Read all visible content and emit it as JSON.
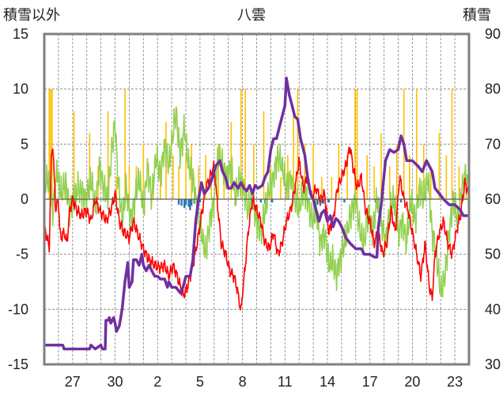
{
  "chart_data": {
    "type": "line",
    "title": "八雲",
    "left_axis_label": "積雪以外",
    "right_axis_label": "積雪",
    "y_left": {
      "min": -15,
      "max": 15,
      "ticks": [
        15,
        10,
        5,
        0,
        -5,
        -10,
        -15
      ]
    },
    "y_right": {
      "min": 30,
      "max": 90,
      "ticks": [
        90,
        80,
        70,
        60,
        50,
        40,
        30
      ]
    },
    "x_day_range": [
      0,
      30
    ],
    "x_tick_labels": [
      {
        "day": 2,
        "label": "27"
      },
      {
        "day": 5,
        "label": "30"
      },
      {
        "day": 8,
        "label": "2"
      },
      {
        "day": 11,
        "label": "5"
      },
      {
        "day": 14,
        "label": "8"
      },
      {
        "day": 17,
        "label": "11"
      },
      {
        "day": 20,
        "label": "14"
      },
      {
        "day": 23,
        "label": "17"
      },
      {
        "day": 26,
        "label": "20"
      },
      {
        "day": 29,
        "label": "23"
      }
    ],
    "grid": true,
    "colors": {
      "precip_bars": "#ffc000",
      "negative_bars": "#2e75b6",
      "temperature": "#ff0000",
      "green_series": "#92d050",
      "snow_depth": "#7030a0",
      "frame": "#808080",
      "grid": "#7f7f7f"
    },
    "snow_depth": [
      [
        0,
        33.5
      ],
      [
        1.3,
        33.5
      ],
      [
        1.4,
        32.8
      ],
      [
        3.2,
        32.8
      ],
      [
        3.3,
        33.5
      ],
      [
        3.6,
        32.8
      ],
      [
        4.0,
        33.5
      ],
      [
        4.1,
        32.8
      ],
      [
        4.3,
        32.8
      ],
      [
        4.35,
        38
      ],
      [
        4.5,
        38
      ],
      [
        4.6,
        38.5
      ],
      [
        4.7,
        37.5
      ],
      [
        4.8,
        38
      ],
      [
        4.9,
        38.5
      ],
      [
        5.0,
        37.5
      ],
      [
        5.1,
        36
      ],
      [
        5.3,
        37
      ],
      [
        5.5,
        40
      ],
      [
        5.7,
        45
      ],
      [
        5.9,
        48.5
      ],
      [
        6.0,
        44
      ],
      [
        6.2,
        45
      ],
      [
        6.3,
        49
      ],
      [
        6.5,
        49
      ],
      [
        6.7,
        48
      ],
      [
        6.9,
        50
      ],
      [
        7.0,
        48
      ],
      [
        7.2,
        47
      ],
      [
        7.4,
        48
      ],
      [
        7.6,
        47
      ],
      [
        7.8,
        46
      ],
      [
        8.0,
        46
      ],
      [
        8.2,
        45.5
      ],
      [
        8.5,
        45.5
      ],
      [
        8.7,
        44
      ],
      [
        8.8,
        45
      ],
      [
        9.0,
        44
      ],
      [
        9.3,
        44
      ],
      [
        9.6,
        43
      ],
      [
        9.8,
        44
      ],
      [
        10.0,
        46
      ],
      [
        10.3,
        46
      ],
      [
        10.5,
        49
      ],
      [
        10.7,
        56
      ],
      [
        10.9,
        60
      ],
      [
        11.1,
        63
      ],
      [
        11.3,
        61
      ],
      [
        11.6,
        62
      ],
      [
        11.9,
        64
      ],
      [
        12.1,
        66
      ],
      [
        12.4,
        67
      ],
      [
        12.6,
        65
      ],
      [
        12.8,
        64
      ],
      [
        13.0,
        62
      ],
      [
        13.2,
        62
      ],
      [
        13.4,
        63
      ],
      [
        13.7,
        62
      ],
      [
        13.9,
        63
      ],
      [
        14.1,
        62
      ],
      [
        14.3,
        61.5
      ],
      [
        14.5,
        62.5
      ],
      [
        14.7,
        61
      ],
      [
        14.9,
        62.5
      ],
      [
        15.1,
        62
      ],
      [
        15.4,
        62.5
      ],
      [
        15.6,
        64
      ],
      [
        15.8,
        65
      ],
      [
        16.0,
        69
      ],
      [
        16.2,
        71
      ],
      [
        16.4,
        71
      ],
      [
        16.6,
        73
      ],
      [
        16.8,
        75
      ],
      [
        17.0,
        77
      ],
      [
        17.1,
        82
      ],
      [
        17.3,
        79
      ],
      [
        17.5,
        77
      ],
      [
        17.7,
        75
      ],
      [
        17.9,
        74.5
      ],
      [
        18.1,
        71
      ],
      [
        18.4,
        68
      ],
      [
        18.6,
        64
      ],
      [
        18.8,
        61
      ],
      [
        19.0,
        60
      ],
      [
        19.2,
        58
      ],
      [
        19.4,
        56
      ],
      [
        19.6,
        57.5
      ],
      [
        19.8,
        58
      ],
      [
        20.0,
        56
      ],
      [
        20.2,
        57
      ],
      [
        20.4,
        55
      ],
      [
        20.6,
        56.5
      ],
      [
        20.8,
        56
      ],
      [
        21.0,
        55
      ],
      [
        21.3,
        53
      ],
      [
        21.6,
        52
      ],
      [
        22.0,
        51
      ],
      [
        22.4,
        51
      ],
      [
        22.6,
        50
      ],
      [
        23.0,
        50
      ],
      [
        23.3,
        49.5
      ],
      [
        23.5,
        49.5
      ],
      [
        23.6,
        55
      ],
      [
        23.8,
        59
      ],
      [
        24.1,
        67
      ],
      [
        24.4,
        69
      ],
      [
        24.7,
        68.5
      ],
      [
        25.0,
        69
      ],
      [
        25.2,
        71.5
      ],
      [
        25.4,
        70
      ],
      [
        25.6,
        67
      ],
      [
        26.0,
        67
      ],
      [
        26.4,
        66
      ],
      [
        26.7,
        65
      ],
      [
        27.0,
        67
      ],
      [
        27.4,
        65
      ],
      [
        27.6,
        62
      ],
      [
        27.9,
        61
      ],
      [
        28.2,
        60
      ],
      [
        28.6,
        59
      ],
      [
        29.0,
        59
      ],
      [
        29.4,
        58
      ],
      [
        29.6,
        57
      ],
      [
        30,
        57
      ]
    ],
    "precip_bars": [
      [
        0.35,
        10
      ],
      [
        0.45,
        10
      ],
      [
        0.55,
        10
      ],
      [
        1.2,
        1
      ],
      [
        1.5,
        2
      ],
      [
        2.1,
        8
      ],
      [
        3.2,
        6
      ],
      [
        3.8,
        3
      ],
      [
        4.5,
        8
      ],
      [
        5.1,
        2
      ],
      [
        5.7,
        10
      ],
      [
        6.0,
        3
      ],
      [
        6.5,
        3
      ],
      [
        7.0,
        5
      ],
      [
        7.7,
        2
      ],
      [
        8.2,
        3
      ],
      [
        8.6,
        7
      ],
      [
        9.1,
        4
      ],
      [
        9.5,
        3
      ],
      [
        10.0,
        4
      ],
      [
        10.4,
        5
      ],
      [
        10.9,
        3
      ],
      [
        11.4,
        4
      ],
      [
        11.8,
        2
      ],
      [
        12.3,
        5
      ],
      [
        12.7,
        3
      ],
      [
        13.2,
        7
      ],
      [
        13.9,
        10
      ],
      [
        14.2,
        10
      ],
      [
        14.8,
        5
      ],
      [
        15.5,
        8
      ],
      [
        16.0,
        3
      ],
      [
        16.7,
        2
      ],
      [
        17.2,
        4
      ],
      [
        17.6,
        8
      ],
      [
        17.9,
        10
      ],
      [
        18.4,
        5
      ],
      [
        19.0,
        5
      ],
      [
        19.6,
        2
      ],
      [
        20.3,
        2
      ],
      [
        20.8,
        5
      ],
      [
        21.4,
        4
      ],
      [
        21.95,
        10
      ],
      [
        22.1,
        10
      ],
      [
        22.8,
        4
      ],
      [
        23.3,
        3
      ],
      [
        23.8,
        6
      ],
      [
        24.4,
        3
      ],
      [
        24.9,
        5
      ],
      [
        25.4,
        10
      ],
      [
        25.8,
        4
      ],
      [
        26.3,
        10
      ],
      [
        26.8,
        5
      ],
      [
        27.3,
        3
      ],
      [
        27.9,
        6
      ],
      [
        28.4,
        4
      ],
      [
        28.8,
        10
      ],
      [
        29.3,
        3
      ],
      [
        29.8,
        2
      ]
    ],
    "negative_bars": [
      [
        9.5,
        -0.5
      ],
      [
        9.7,
        -0.6
      ],
      [
        9.9,
        -0.8
      ],
      [
        10.0,
        -0.5
      ],
      [
        10.2,
        -0.7
      ],
      [
        10.3,
        -1.0
      ],
      [
        10.4,
        -0.6
      ],
      [
        10.6,
        -0.4
      ],
      [
        10.8,
        -0.5
      ],
      [
        11.0,
        -0.3
      ],
      [
        15.3,
        -0.3
      ],
      [
        15.6,
        -0.4
      ],
      [
        16.1,
        -0.3
      ],
      [
        19.1,
        -0.8
      ],
      [
        19.3,
        -0.5
      ],
      [
        19.5,
        -0.6
      ],
      [
        19.7,
        -0.4
      ],
      [
        20.1,
        -0.3
      ],
      [
        21.2,
        -0.3
      ],
      [
        23.4,
        -0.3
      ],
      [
        23.6,
        -0.3
      ],
      [
        25.2,
        -0.3
      ]
    ],
    "temperature_keypoints": [
      [
        0,
        -2.5
      ],
      [
        0.2,
        -3.5
      ],
      [
        0.35,
        -4.5
      ],
      [
        0.5,
        4
      ],
      [
        0.6,
        5
      ],
      [
        0.8,
        -1
      ],
      [
        1.0,
        0
      ],
      [
        1.1,
        -3
      ],
      [
        1.2,
        -3.5
      ],
      [
        1.4,
        -3
      ],
      [
        1.6,
        -4
      ],
      [
        1.8,
        -1
      ],
      [
        2.0,
        0
      ],
      [
        2.3,
        -1
      ],
      [
        2.6,
        -1.5
      ],
      [
        3.0,
        -1
      ],
      [
        3.3,
        -2
      ],
      [
        3.6,
        0
      ],
      [
        3.9,
        -1
      ],
      [
        4.2,
        -1.5
      ],
      [
        4.4,
        -2
      ],
      [
        4.7,
        -1
      ],
      [
        5.0,
        0.5
      ],
      [
        5.3,
        -2
      ],
      [
        5.6,
        -3
      ],
      [
        6.0,
        -3.5
      ],
      [
        6.3,
        -2
      ],
      [
        6.7,
        -3.5
      ],
      [
        7.0,
        -4.5
      ],
      [
        7.4,
        -5.5
      ],
      [
        7.8,
        -6
      ],
      [
        8.2,
        -6.2
      ],
      [
        8.5,
        -6
      ],
      [
        8.8,
        -7
      ],
      [
        9.1,
        -6
      ],
      [
        9.4,
        -7
      ],
      [
        9.8,
        -8.8
      ],
      [
        10.1,
        -8
      ],
      [
        10.5,
        -6
      ],
      [
        10.8,
        -4
      ],
      [
        11.1,
        -1.5
      ],
      [
        11.4,
        1
      ],
      [
        11.7,
        2
      ],
      [
        12.0,
        3
      ],
      [
        12.2,
        0
      ],
      [
        12.5,
        -4
      ],
      [
        12.8,
        -5
      ],
      [
        13.1,
        -6.5
      ],
      [
        13.4,
        -7
      ],
      [
        13.6,
        -8
      ],
      [
        13.8,
        -9.5
      ],
      [
        13.9,
        -10.2
      ],
      [
        14.0,
        -8.5
      ],
      [
        14.2,
        -6
      ],
      [
        14.4,
        -3
      ],
      [
        14.7,
        0
      ],
      [
        15.0,
        -1
      ],
      [
        15.3,
        -2
      ],
      [
        15.6,
        -4
      ],
      [
        15.9,
        -4.5
      ],
      [
        16.2,
        -3
      ],
      [
        16.5,
        -5
      ],
      [
        16.8,
        -4
      ],
      [
        17.1,
        -2
      ],
      [
        17.4,
        -1
      ],
      [
        17.7,
        1
      ],
      [
        18.0,
        3.5
      ],
      [
        18.3,
        1
      ],
      [
        18.6,
        2
      ],
      [
        18.9,
        0
      ],
      [
        19.2,
        1
      ],
      [
        19.5,
        0
      ],
      [
        19.8,
        0.5
      ],
      [
        20.1,
        -3
      ],
      [
        20.4,
        -2
      ],
      [
        20.7,
        1
      ],
      [
        21.0,
        2
      ],
      [
        21.3,
        3
      ],
      [
        21.6,
        4.8
      ],
      [
        21.8,
        3
      ],
      [
        22.1,
        1
      ],
      [
        22.4,
        2
      ],
      [
        22.7,
        -1
      ],
      [
        23.0,
        -2
      ],
      [
        23.3,
        -4
      ],
      [
        23.6,
        -3
      ],
      [
        23.9,
        -5
      ],
      [
        24.2,
        -4
      ],
      [
        24.5,
        -1
      ],
      [
        24.8,
        -3
      ],
      [
        25.1,
        2
      ],
      [
        25.4,
        0
      ],
      [
        25.7,
        -1
      ],
      [
        26.0,
        -3
      ],
      [
        26.3,
        -5
      ],
      [
        26.6,
        -7
      ],
      [
        26.9,
        -4
      ],
      [
        27.2,
        -8
      ],
      [
        27.4,
        -9
      ],
      [
        27.6,
        -5
      ],
      [
        27.9,
        -3
      ],
      [
        28.2,
        -2
      ],
      [
        28.5,
        -4
      ],
      [
        28.8,
        -5
      ],
      [
        29.1,
        -3
      ],
      [
        29.4,
        -1.5
      ],
      [
        29.7,
        1.5
      ],
      [
        30,
        0.5
      ]
    ],
    "green_keypoints": [
      [
        0,
        1
      ],
      [
        0.3,
        2
      ],
      [
        0.6,
        -1
      ],
      [
        0.9,
        2.5
      ],
      [
        1.2,
        0.5
      ],
      [
        1.5,
        1.5
      ],
      [
        1.8,
        -1
      ],
      [
        2.1,
        0
      ],
      [
        2.4,
        1
      ],
      [
        2.7,
        0.5
      ],
      [
        3.0,
        0
      ],
      [
        3.3,
        2
      ],
      [
        3.6,
        -1
      ],
      [
        3.9,
        3
      ],
      [
        4.2,
        1
      ],
      [
        4.5,
        0
      ],
      [
        4.8,
        5
      ],
      [
        5.0,
        7
      ],
      [
        5.2,
        2
      ],
      [
        5.5,
        -2
      ],
      [
        5.8,
        1
      ],
      [
        6.1,
        -2
      ],
      [
        6.4,
        0
      ],
      [
        6.7,
        2
      ],
      [
        7.0,
        -1
      ],
      [
        7.3,
        3
      ],
      [
        7.6,
        0
      ],
      [
        7.9,
        4
      ],
      [
        8.2,
        2
      ],
      [
        8.5,
        5
      ],
      [
        8.8,
        3
      ],
      [
        9.1,
        6
      ],
      [
        9.3,
        8
      ],
      [
        9.6,
        4
      ],
      [
        9.9,
        6.5
      ],
      [
        10.2,
        3
      ],
      [
        10.5,
        2
      ],
      [
        10.8,
        -1
      ],
      [
        11.1,
        -3
      ],
      [
        11.4,
        -5
      ],
      [
        11.7,
        -2
      ],
      [
        12.0,
        0
      ],
      [
        12.3,
        4
      ],
      [
        12.6,
        3
      ],
      [
        12.9,
        2
      ],
      [
        13.2,
        3
      ],
      [
        13.5,
        0
      ],
      [
        13.8,
        2
      ],
      [
        14.1,
        1
      ],
      [
        14.4,
        -1
      ],
      [
        14.7,
        0
      ],
      [
        15.0,
        -2
      ],
      [
        15.3,
        -3
      ],
      [
        15.6,
        -1
      ],
      [
        15.9,
        1
      ],
      [
        16.2,
        2
      ],
      [
        16.5,
        4
      ],
      [
        16.8,
        3
      ],
      [
        17.1,
        1
      ],
      [
        17.4,
        2
      ],
      [
        17.7,
        0
      ],
      [
        18.0,
        -1
      ],
      [
        18.3,
        1
      ],
      [
        18.6,
        0
      ],
      [
        18.9,
        -2
      ],
      [
        19.2,
        -1
      ],
      [
        19.5,
        -4
      ],
      [
        19.8,
        -3
      ],
      [
        20.1,
        -6
      ],
      [
        20.4,
        -5.5
      ],
      [
        20.6,
        -7
      ],
      [
        20.8,
        -6
      ],
      [
        21.1,
        -4.5
      ],
      [
        21.4,
        -3
      ],
      [
        21.7,
        -1
      ],
      [
        22.0,
        0
      ],
      [
        22.3,
        -3
      ],
      [
        22.6,
        -4
      ],
      [
        22.9,
        -1
      ],
      [
        23.2,
        -3
      ],
      [
        23.5,
        0
      ],
      [
        23.8,
        -2
      ],
      [
        24.1,
        -4
      ],
      [
        24.4,
        -1
      ],
      [
        24.7,
        0
      ],
      [
        25.0,
        -3
      ],
      [
        25.3,
        -2
      ],
      [
        25.6,
        -4
      ],
      [
        25.9,
        0
      ],
      [
        26.2,
        -2
      ],
      [
        26.5,
        1
      ],
      [
        26.8,
        0
      ],
      [
        27.1,
        2
      ],
      [
        27.4,
        -3
      ],
      [
        27.7,
        -5
      ],
      [
        28.0,
        -8.5
      ],
      [
        28.3,
        -7
      ],
      [
        28.6,
        -3
      ],
      [
        28.9,
        0
      ],
      [
        29.2,
        -2
      ],
      [
        29.5,
        1
      ],
      [
        29.8,
        2.5
      ],
      [
        30,
        0
      ]
    ]
  }
}
